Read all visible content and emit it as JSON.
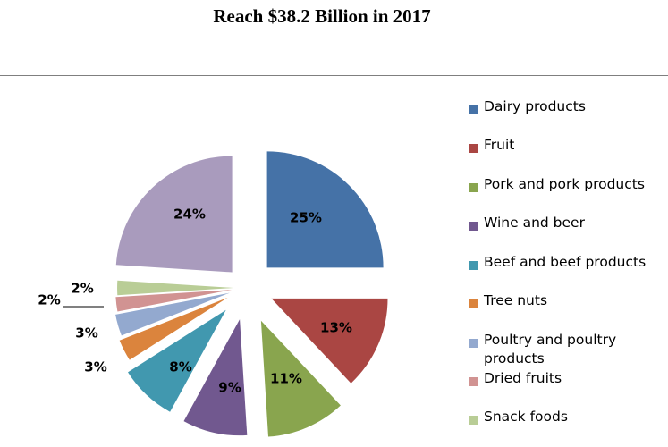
{
  "chart_data": {
    "type": "pie",
    "title": "Reach $38.2 Billion in 2017",
    "exploded": true,
    "legend_position": "right",
    "slices": [
      {
        "name": "Dairy products",
        "value": 25,
        "label": "25%",
        "color": "#4572a7"
      },
      {
        "name": "Fruit",
        "value": 13,
        "label": "13%",
        "color": "#aa4643"
      },
      {
        "name": "Pork and pork products",
        "value": 11,
        "label": "11%",
        "color": "#89a54e"
      },
      {
        "name": "Wine and beer",
        "value": 9,
        "label": "9%",
        "color": "#71588f"
      },
      {
        "name": "Beef and beef products",
        "value": 8,
        "label": "8%",
        "color": "#4198af"
      },
      {
        "name": "Tree nuts",
        "value": 3,
        "label": "3%",
        "color": "#db843d"
      },
      {
        "name": "Poultry and poultry products",
        "value": 3,
        "label": "3%",
        "color": "#93a9cf"
      },
      {
        "name": "Dried fruits",
        "value": 2,
        "label": "2%",
        "color": "#d19392"
      },
      {
        "name": "Snack foods",
        "value": 2,
        "label": "2%",
        "color": "#b9cd96"
      },
      {
        "name": "",
        "value": 24,
        "label": "24%",
        "color": "#a99bbd"
      }
    ]
  }
}
